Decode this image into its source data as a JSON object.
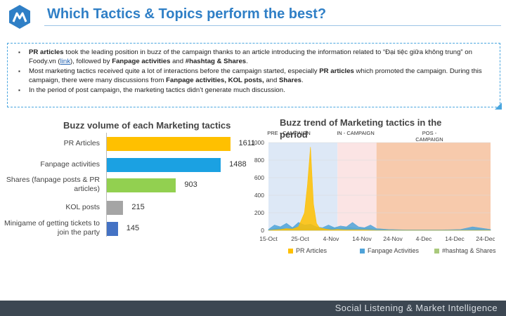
{
  "header": {
    "title": "Which Tactics & Topics perform the best?"
  },
  "notes": {
    "b1_t1": "PR articles",
    "b1_t2": " took the leading position in buzz of the campaign thanks to an article introducing the information related to “Đại tiệc giữa không trung” on Foody.vn (",
    "b1_link": "link",
    "b1_t3": "), followed by ",
    "b1_t4": "Fanpage activities",
    "b1_t5": " and ",
    "b1_t6": "#hashtag & Shares",
    "b1_t7": ".",
    "b2_t1": "Most marketing tactics received quite a lot of interactions before the campaign started, especially ",
    "b2_t2": "PR articles",
    "b2_t3": " which promoted the campaign. During this campaign, there were many discussions from ",
    "b2_t4": "Fanpage activities, KOL posts,",
    "b2_t5": " and ",
    "b2_t6": "Shares",
    "b2_t7": ".",
    "b3": "In the period of post campaign, the marketing tactics didn’t generate much discussion."
  },
  "bar_chart": {
    "title": "Buzz volume of each Marketing tactics",
    "colors": [
      "#ffc000",
      "#1ba1e2",
      "#92d050",
      "#a5a5a5",
      "#4472c4"
    ]
  },
  "trend_chart": {
    "title": "Buzz trend of Marketing tactics in the period",
    "phases": [
      "PRE - CAMPAIGN",
      "IN - CAMPAIGN",
      "POS - CAMPAIGN"
    ],
    "phase_colors": [
      "#dde8f6",
      "#fbe4e4",
      "#f7caac"
    ],
    "series_colors": [
      "#ffc000",
      "#4fa3d9",
      "#a9c97c"
    ]
  },
  "chart_data": [
    {
      "type": "bar",
      "orientation": "horizontal",
      "title": "Buzz volume of each Marketing tactics",
      "categories": [
        "PR Articles",
        "Fanpage activities",
        "Shares (fanpage posts & PR articles)",
        "KOL posts",
        "Minigame of getting tickets to join the party"
      ],
      "values": [
        1611,
        1488,
        903,
        215,
        145
      ],
      "xlim": [
        0,
        1750
      ]
    },
    {
      "type": "area",
      "title": "Buzz trend of Marketing tactics in the period",
      "x_ticks": [
        "15-Oct",
        "25-Oct",
        "4-Nov",
        "14-Nov",
        "24-Nov",
        "4-Dec",
        "14-Dec",
        "24-Dec"
      ],
      "y_ticks": [
        "0",
        "200",
        "400",
        "600",
        "800",
        "1000"
      ],
      "ylim": [
        0,
        1000
      ],
      "phase_bounds": [
        [
          "15-Oct",
          "7-Nov"
        ],
        [
          "7-Nov",
          "20-Nov"
        ],
        [
          "20-Nov",
          "28-Dec"
        ]
      ],
      "series": [
        {
          "name": "PR Articles",
          "x": [
            "15-Oct",
            "17-Oct",
            "19-Oct",
            "21-Oct",
            "23-Oct",
            "25-Oct",
            "27-Oct",
            "28-Oct",
            "29-Oct",
            "30-Oct",
            "31-Oct",
            "1-Nov",
            "3-Nov",
            "5-Nov",
            "7-Nov",
            "10-Nov",
            "13-Nov",
            "16-Nov",
            "20-Nov",
            "24-Nov",
            "30-Nov",
            "6-Dec",
            "12-Dec",
            "18-Dec",
            "24-Dec",
            "28-Dec"
          ],
          "y": [
            0,
            5,
            10,
            20,
            15,
            40,
            200,
            520,
            950,
            300,
            80,
            30,
            15,
            5,
            10,
            5,
            5,
            5,
            0,
            0,
            0,
            0,
            0,
            0,
            0,
            0
          ]
        },
        {
          "name": "Fanpage Activities",
          "x": [
            "15-Oct",
            "17-Oct",
            "19-Oct",
            "21-Oct",
            "23-Oct",
            "25-Oct",
            "27-Oct",
            "29-Oct",
            "31-Oct",
            "2-Nov",
            "4-Nov",
            "6-Nov",
            "8-Nov",
            "10-Nov",
            "12-Nov",
            "14-Nov",
            "16-Nov",
            "18-Nov",
            "20-Nov",
            "24-Nov",
            "30-Nov",
            "6-Dec",
            "12-Dec",
            "18-Dec",
            "22-Dec",
            "24-Dec",
            "26-Dec",
            "28-Dec"
          ],
          "y": [
            10,
            60,
            40,
            80,
            30,
            90,
            60,
            70,
            40,
            30,
            60,
            30,
            50,
            40,
            90,
            40,
            30,
            60,
            20,
            10,
            5,
            5,
            5,
            10,
            40,
            30,
            20,
            10
          ]
        },
        {
          "name": "#hashtag & Shares",
          "x": [
            "15-Oct",
            "18-Oct",
            "21-Oct",
            "24-Oct",
            "27-Oct",
            "30-Oct",
            "2-Nov",
            "5-Nov",
            "8-Nov",
            "11-Nov",
            "14-Nov",
            "17-Nov",
            "20-Nov",
            "26-Nov",
            "2-Dec",
            "8-Dec",
            "14-Dec",
            "20-Dec",
            "24-Dec",
            "28-Dec"
          ],
          "y": [
            5,
            30,
            20,
            40,
            30,
            25,
            20,
            30,
            25,
            35,
            20,
            30,
            10,
            5,
            5,
            5,
            5,
            5,
            15,
            5
          ]
        }
      ]
    }
  ],
  "footer": {
    "text": "Social Listening & Market Intelligence"
  }
}
